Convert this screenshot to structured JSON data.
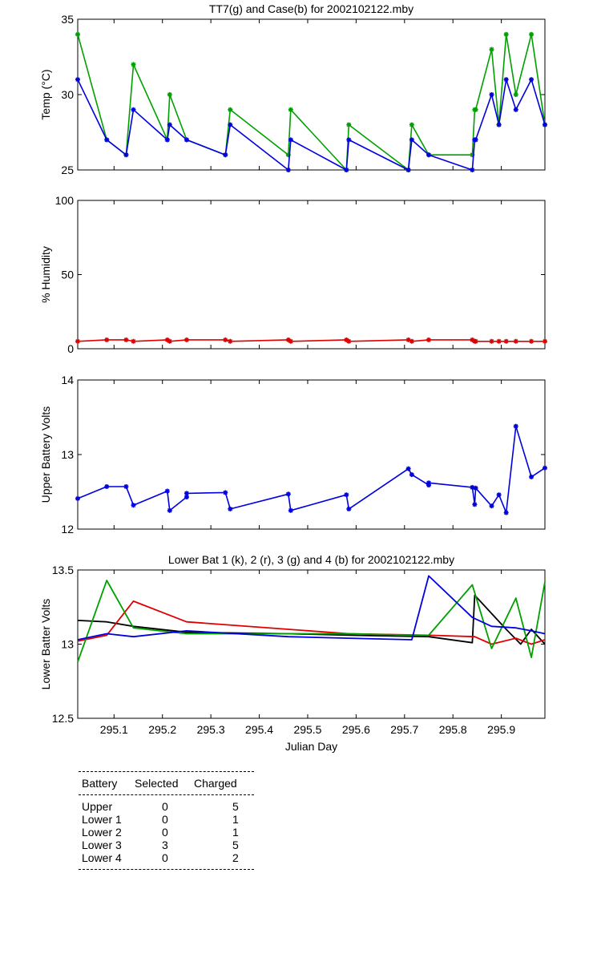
{
  "chart_data": [
    {
      "type": "line",
      "title": "TT7(g) and Case(b) for 2002102122.mby",
      "ylabel": "Temp  (°C)",
      "xlim": [
        295.025,
        295.99
      ],
      "ylim": [
        25,
        35
      ],
      "yticks": [
        25,
        30,
        35
      ],
      "xticks": [],
      "markers": true,
      "series": [
        {
          "color": "#00a000",
          "x": [
            295.025,
            295.085,
            295.125,
            295.14,
            295.21,
            295.215,
            295.25,
            295.33,
            295.34,
            295.46,
            295.465,
            295.58,
            295.585,
            295.708,
            295.715,
            295.75,
            295.84,
            295.845,
            295.847,
            295.88,
            295.895,
            295.91,
            295.93,
            295.962,
            295.99
          ],
          "y": [
            34,
            27,
            26,
            32,
            27,
            30,
            27,
            26,
            29,
            26,
            29,
            25,
            28,
            25,
            28,
            26,
            26,
            29,
            29,
            33,
            28,
            34,
            30,
            34,
            28
          ]
        },
        {
          "color": "#0000e0",
          "x": [
            295.025,
            295.085,
            295.125,
            295.14,
            295.21,
            295.215,
            295.25,
            295.33,
            295.34,
            295.46,
            295.465,
            295.58,
            295.585,
            295.708,
            295.715,
            295.75,
            295.84,
            295.845,
            295.847,
            295.88,
            295.895,
            295.91,
            295.93,
            295.962,
            295.99
          ],
          "y": [
            31,
            27,
            26,
            29,
            27,
            28,
            27,
            26,
            28,
            25,
            27,
            25,
            27,
            25,
            27,
            26,
            25,
            27,
            27,
            30,
            28,
            31,
            29,
            31,
            28
          ]
        }
      ]
    },
    {
      "type": "line",
      "ylabel": "% Humidity",
      "xlim": [
        295.025,
        295.99
      ],
      "ylim": [
        0,
        100
      ],
      "yticks": [
        0,
        50,
        100
      ],
      "xticks": [],
      "markers": true,
      "series": [
        {
          "color": "#e00000",
          "x": [
            295.025,
            295.085,
            295.125,
            295.14,
            295.21,
            295.215,
            295.25,
            295.33,
            295.34,
            295.46,
            295.465,
            295.58,
            295.585,
            295.708,
            295.715,
            295.75,
            295.84,
            295.845,
            295.847,
            295.88,
            295.895,
            295.91,
            295.93,
            295.962,
            295.99
          ],
          "y": [
            5,
            6,
            6,
            5,
            6,
            5,
            6,
            6,
            5,
            6,
            5,
            6,
            5,
            6,
            5,
            6,
            6,
            5,
            5,
            5,
            5,
            5,
            5,
            5,
            5
          ]
        }
      ]
    },
    {
      "type": "line",
      "ylabel": "Upper Battery Volts",
      "xlim": [
        295.025,
        295.99
      ],
      "ylim": [
        12,
        14
      ],
      "yticks": [
        12,
        13,
        14
      ],
      "xticks": [],
      "markers": true,
      "series": [
        {
          "color": "#0000e0",
          "x": [
            295.025,
            295.085,
            295.125,
            295.14,
            295.21,
            295.215,
            295.25,
            295.25,
            295.33,
            295.34,
            295.46,
            295.465,
            295.58,
            295.585,
            295.708,
            295.715,
            295.75,
            295.75,
            295.84,
            295.845,
            295.847,
            295.88,
            295.895,
            295.91,
            295.93,
            295.962,
            295.99
          ],
          "y": [
            12.41,
            12.57,
            12.57,
            12.32,
            12.51,
            12.25,
            12.43,
            12.48,
            12.49,
            12.27,
            12.47,
            12.25,
            12.46,
            12.27,
            12.81,
            12.73,
            12.59,
            12.62,
            12.56,
            12.33,
            12.55,
            12.31,
            12.46,
            12.22,
            13.38,
            12.7,
            12.82
          ]
        }
      ]
    },
    {
      "type": "line",
      "title": "Lower Bat 1 (k), 2 (r), 3 (g) and 4 (b) for 2002102122.mby",
      "xlabel": "Julian Day",
      "ylabel": "Lower Batter Volts",
      "xlim": [
        295.025,
        295.99
      ],
      "ylim": [
        12.5,
        13.5
      ],
      "yticks": [
        12.5,
        13,
        13.5
      ],
      "xticks": [
        295.1,
        295.2,
        295.3,
        295.4,
        295.5,
        295.6,
        295.7,
        295.8,
        295.9
      ],
      "markers": false,
      "series": [
        {
          "color": "#000000",
          "x": [
            295.025,
            295.085,
            295.14,
            295.25,
            295.46,
            295.585,
            295.75,
            295.84,
            295.845,
            295.91,
            295.94,
            295.962,
            295.99
          ],
          "y": [
            13.16,
            13.15,
            13.12,
            13.08,
            13.07,
            13.06,
            13.05,
            13.01,
            13.33,
            13.1,
            13.0,
            13.1,
            13.0
          ]
        },
        {
          "color": "#e00000",
          "x": [
            295.025,
            295.085,
            295.14,
            295.25,
            295.46,
            295.585,
            295.75,
            295.845,
            295.88,
            295.93,
            295.962,
            295.99
          ],
          "y": [
            13.02,
            13.06,
            13.29,
            13.15,
            13.1,
            13.07,
            13.06,
            13.05,
            13.0,
            13.04,
            13.0,
            13.03
          ]
        },
        {
          "color": "#00a000",
          "x": [
            295.025,
            295.085,
            295.14,
            295.25,
            295.46,
            295.585,
            295.715,
            295.75,
            295.84,
            295.88,
            295.93,
            295.962,
            295.99
          ],
          "y": [
            12.88,
            13.43,
            13.11,
            13.07,
            13.07,
            13.07,
            13.06,
            13.06,
            13.4,
            12.97,
            13.31,
            12.91,
            13.42
          ]
        },
        {
          "color": "#0000e0",
          "x": [
            295.025,
            295.085,
            295.14,
            295.25,
            295.46,
            295.585,
            295.715,
            295.75,
            295.84,
            295.88,
            295.93,
            295.962,
            295.99
          ],
          "y": [
            13.03,
            13.07,
            13.05,
            13.09,
            13.05,
            13.04,
            13.03,
            13.46,
            13.18,
            13.12,
            13.11,
            13.09,
            13.07
          ]
        }
      ]
    }
  ],
  "table": {
    "headers": [
      "Battery",
      "Selected",
      "Charged"
    ],
    "rows": [
      [
        "Upper",
        "0",
        "5"
      ],
      [
        "Lower 1",
        "0",
        "1"
      ],
      [
        "Lower 2",
        "0",
        "1"
      ],
      [
        "Lower 3",
        "3",
        "5"
      ],
      [
        "Lower 4",
        "0",
        "2"
      ]
    ]
  }
}
